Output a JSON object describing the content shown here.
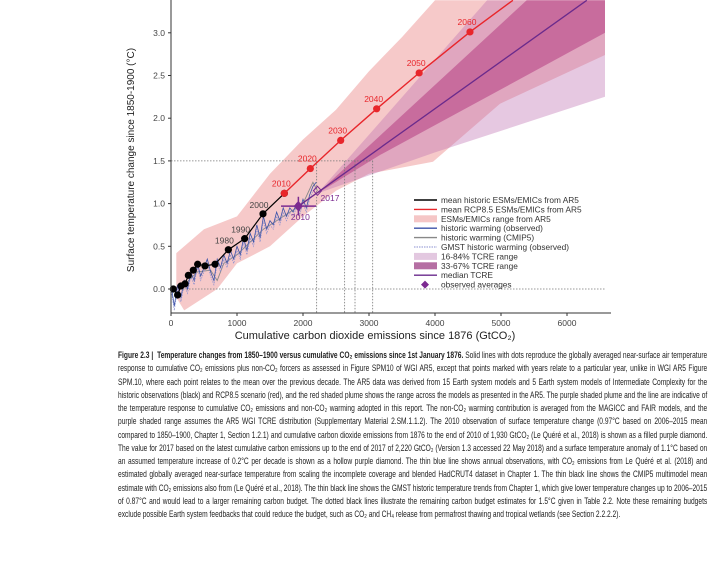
{
  "chart_data": {
    "type": "line",
    "xlabel": "Cumulative carbon dioxide emissions since 1876 (GtCO₂)",
    "ylabel": "Surface temperature change since 1850-1900 (°C)",
    "xlim": [
      0,
      6576
    ],
    "ylim": [
      -0.28,
      3.38
    ],
    "xticks": [
      0,
      1000,
      2000,
      3000,
      4000,
      5000,
      6000
    ],
    "yticks": [
      0.0,
      0.5,
      1.0,
      1.5,
      2.0,
      2.5,
      3.0
    ],
    "grid": false,
    "legend_placement": "lower-right",
    "colors": {
      "historic": "#000000",
      "rcp85": "#e8262b",
      "esm_range": "#f5c6c6",
      "observed": "#3b52a8",
      "cmip5": "#888888",
      "gmst": "#8a8fd0",
      "tcre_16_84": "#d9b6d8",
      "tcre_33_67": "#c05a93",
      "median": "#6a2a8c",
      "diamond": "#7b2a90"
    },
    "series": [
      {
        "name": "mean historic ESMs/EMICs from AR5",
        "points": [
          [
            35,
            0.0
          ],
          [
            100,
            -0.07
          ],
          [
            150,
            0.035
          ],
          [
            212,
            0.06
          ],
          [
            263,
            0.16
          ],
          [
            338,
            0.22
          ],
          [
            404,
            0.29
          ],
          [
            515,
            0.27
          ],
          [
            667,
            0.29
          ],
          [
            869,
            0.46
          ],
          [
            1116,
            0.59
          ],
          [
            1394,
            0.88
          ],
          [
            1717,
            1.12
          ]
        ],
        "labels": [
          {
            "x": 869,
            "y": 0.46,
            "text": "1980"
          },
          {
            "x": 1116,
            "y": 0.59,
            "text": "1990"
          },
          {
            "x": 1394,
            "y": 0.88,
            "text": "2000"
          }
        ]
      },
      {
        "name": "mean RCP8.5 ESMs/EMICs from AR5",
        "points": [
          [
            1717,
            1.12
          ],
          [
            2111,
            1.41
          ],
          [
            2571,
            1.74
          ],
          [
            3116,
            2.11
          ],
          [
            3760,
            2.53
          ],
          [
            4530,
            3.01
          ],
          [
            5180,
            3.38
          ]
        ],
        "labels": [
          {
            "x": 1717,
            "y": 1.12,
            "text": "2010"
          },
          {
            "x": 2111,
            "y": 1.41,
            "text": "2020"
          },
          {
            "x": 2571,
            "y": 1.74,
            "text": "2030"
          },
          {
            "x": 3116,
            "y": 2.11,
            "text": "2040"
          },
          {
            "x": 3760,
            "y": 2.53,
            "text": "2050"
          },
          {
            "x": 4530,
            "y": 3.01,
            "text": "2060"
          }
        ]
      },
      {
        "name": "historic warming (observed)",
        "points": [
          [
            0,
            0.05
          ],
          [
            50,
            -0.2
          ],
          [
            100,
            0.05
          ],
          [
            150,
            -0.1
          ],
          [
            200,
            0.1
          ],
          [
            250,
            0.0
          ],
          [
            300,
            0.2
          ],
          [
            350,
            0.1
          ],
          [
            400,
            0.3
          ],
          [
            450,
            0.15
          ],
          [
            500,
            0.25
          ],
          [
            550,
            0.35
          ],
          [
            600,
            0.2
          ],
          [
            650,
            0.1
          ],
          [
            700,
            0.35
          ],
          [
            750,
            0.25
          ],
          [
            800,
            0.4
          ],
          [
            850,
            0.3
          ],
          [
            900,
            0.45
          ],
          [
            950,
            0.35
          ],
          [
            1000,
            0.5
          ],
          [
            1050,
            0.4
          ],
          [
            1100,
            0.6
          ],
          [
            1150,
            0.45
          ],
          [
            1200,
            0.65
          ],
          [
            1250,
            0.55
          ],
          [
            1300,
            0.75
          ],
          [
            1350,
            0.6
          ],
          [
            1400,
            0.85
          ],
          [
            1450,
            0.7
          ],
          [
            1500,
            0.8
          ],
          [
            1550,
            0.75
          ],
          [
            1600,
            0.9
          ],
          [
            1650,
            0.8
          ],
          [
            1700,
            0.95
          ],
          [
            1750,
            0.85
          ],
          [
            1800,
            0.95
          ],
          [
            1850,
            0.9
          ],
          [
            1900,
            1.0
          ],
          [
            1950,
            0.92
          ],
          [
            2000,
            1.05
          ],
          [
            2050,
            0.95
          ],
          [
            2100,
            1.1
          ],
          [
            2150,
            1.2
          ],
          [
            2200,
            1.25
          ]
        ]
      },
      {
        "name": "historic warming (CMIP5)",
        "points": [
          [
            0,
            0.0
          ],
          [
            200,
            0.05
          ],
          [
            400,
            0.2
          ],
          [
            600,
            0.22
          ],
          [
            700,
            0.1
          ],
          [
            800,
            0.3
          ],
          [
            1000,
            0.4
          ],
          [
            1200,
            0.55
          ],
          [
            1400,
            0.7
          ],
          [
            1600,
            0.8
          ],
          [
            1800,
            0.9
          ],
          [
            2000,
            1.0
          ],
          [
            2150,
            1.25
          ],
          [
            2220,
            1.15
          ]
        ]
      },
      {
        "name": "median TCRE",
        "points": [
          [
            1930,
            0.97
          ],
          [
            6300,
            3.38
          ]
        ]
      }
    ],
    "ranges": [
      {
        "name": "ESMs/EMICs range from AR5",
        "upper": [
          [
            80,
            0.42
          ],
          [
            500,
            0.7
          ],
          [
            1000,
            0.85
          ],
          [
            1500,
            1.35
          ],
          [
            2000,
            1.75
          ],
          [
            2500,
            2.1
          ],
          [
            3000,
            2.55
          ],
          [
            3500,
            2.95
          ],
          [
            4000,
            3.38
          ],
          [
            4700,
            3.38
          ]
        ],
        "lower": [
          [
            80,
            -0.1
          ],
          [
            200,
            -0.25
          ],
          [
            700,
            0.0
          ],
          [
            1000,
            0.3
          ],
          [
            1500,
            0.5
          ],
          [
            2000,
            0.85
          ],
          [
            2500,
            1.15
          ],
          [
            3000,
            1.35
          ],
          [
            3970,
            1.49
          ],
          [
            4985,
            2.17
          ],
          [
            6576,
            2.74
          ],
          [
            6576,
            3.38
          ]
        ]
      },
      {
        "name": "16-84% TCRE range",
        "upper": [
          [
            2220,
            1.12
          ],
          [
            4790,
            3.38
          ],
          [
            6576,
            3.38
          ]
        ],
        "lower": [
          [
            2220,
            1.12
          ],
          [
            4000,
            1.6
          ],
          [
            6576,
            2.25
          ]
        ]
      },
      {
        "name": "33-67% TCRE range",
        "upper": [
          [
            2220,
            1.12
          ],
          [
            5390,
            3.38
          ],
          [
            6576,
            3.38
          ]
        ],
        "lower": [
          [
            2220,
            1.12
          ],
          [
            3170,
            1.57
          ],
          [
            6576,
            3.0
          ]
        ]
      }
    ],
    "observed_averages": [
      {
        "year": "2010",
        "x": 1930,
        "y": 0.97,
        "filled": true,
        "xerr": [
          1667,
          2197
        ],
        "yerr": [
          0.86,
          1.08
        ]
      },
      {
        "year": "2017",
        "x": 2220,
        "y": 1.15,
        "filled": false
      }
    ],
    "budget_lines": {
      "temperature": 1.5,
      "x_values": [
        2207,
        2631,
        2788,
        3056
      ]
    },
    "legend": [
      {
        "label": "mean historic ESMs/EMICs from AR5",
        "kind": "line",
        "color": "#000000"
      },
      {
        "label": "mean RCP8.5 ESMs/EMICs from AR5",
        "kind": "line",
        "color": "#e8262b"
      },
      {
        "label": "ESMs/EMICs range from AR5",
        "kind": "patch",
        "color": "#f5c6c6"
      },
      {
        "label": "historic warming (observed)",
        "kind": "line",
        "color": "#3b52a8"
      },
      {
        "label": "historic warming (CMIP5)",
        "kind": "line",
        "color": "#888888"
      },
      {
        "label": "GMST historic warming (observed)",
        "kind": "dotted",
        "color": "#8a8fd0"
      },
      {
        "label": "16-84% TCRE range",
        "kind": "patch",
        "color": "#e3c8e0"
      },
      {
        "label": "33-67% TCRE range",
        "kind": "patch",
        "color": "#b56fa3"
      },
      {
        "label": "median TCRE",
        "kind": "line",
        "color": "#6a2a8c"
      },
      {
        "label": "observed averages",
        "kind": "diamond",
        "color": "#7b2a90"
      }
    ]
  },
  "caption": {
    "figure_label": "Figure 2.3 |",
    "title": "Temperature changes from 1850–1900 versus cumulative CO₂ emissions since 1st January 1876.",
    "body": "Solid lines with dots reproduce the globally averaged near-surface air temperature response to cumulative CO₂ emissions plus non-CO₂ forcers as assessed in Figure SPM10 of WGI AR5, except that points marked with years relate to a particular year, unlike in WGI AR5 Figure SPM.10, where each point relates to the mean over the previous decade. The AR5 data was derived from 15 Earth system models and 5 Earth system models of Intermediate Complexity for the historic observations (black) and RCP8.5 scenario (red), and the red shaded plume shows the range across the models as presented in the AR5. The purple shaded plume and the line are indicative of the temperature response to cumulative CO₂ emissions and non-CO₂ warming adopted in this report. The non-CO₂ warming contribution is averaged from the MAGICC and FAIR models, and the purple shaded range assumes the AR5 WGI TCRE distribution (Supplementary Material 2.SM.1.1.2). The 2010 observation of surface temperature change (0.97°C based on 2006–2015 mean compared to 1850–1900, Chapter 1, Section 1.2.1) and cumulative carbon dioxide emissions from 1876 to the end of 2010 of 1,930 GtCO₂ (Le Quéré et al., 2018) is shown as a filled purple diamond. The value for 2017 based on the latest cumulative carbon emissions up to the end of 2017 of 2,220 GtCO₂ (Version 1.3 accessed 22 May 2018) and a surface temperature anomaly of 1.1°C based on an assumed temperature increase of 0.2°C per decade is shown as a hollow purple diamond. The thin blue line shows annual observations, with CO₂ emissions from Le Quéré et al. (2018) and estimated globally averaged near-surface temperature from scaling the incomplete coverage and blended HadCRUT4 dataset in Chapter 1. The thin black line shows the CMIP5 multimodel mean estimate with CO₂ emissions also from (Le Quéré et al., 2018). The thin black line shows the GMST historic temperature trends from Chapter 1, which give lower temperature changes up to 2006–2015 of 0.87°C and would lead to a larger remaining carbon budget. The dotted black lines illustrate the remaining carbon budget estimates for 1.5°C given in Table 2.2. Note these remaining budgets exclude possible Earth system feedbacks that could reduce the budget, such as CO₂ and CH₄ release from permafrost thawing and tropical wetlands (see Section 2.2.2.2)."
  }
}
